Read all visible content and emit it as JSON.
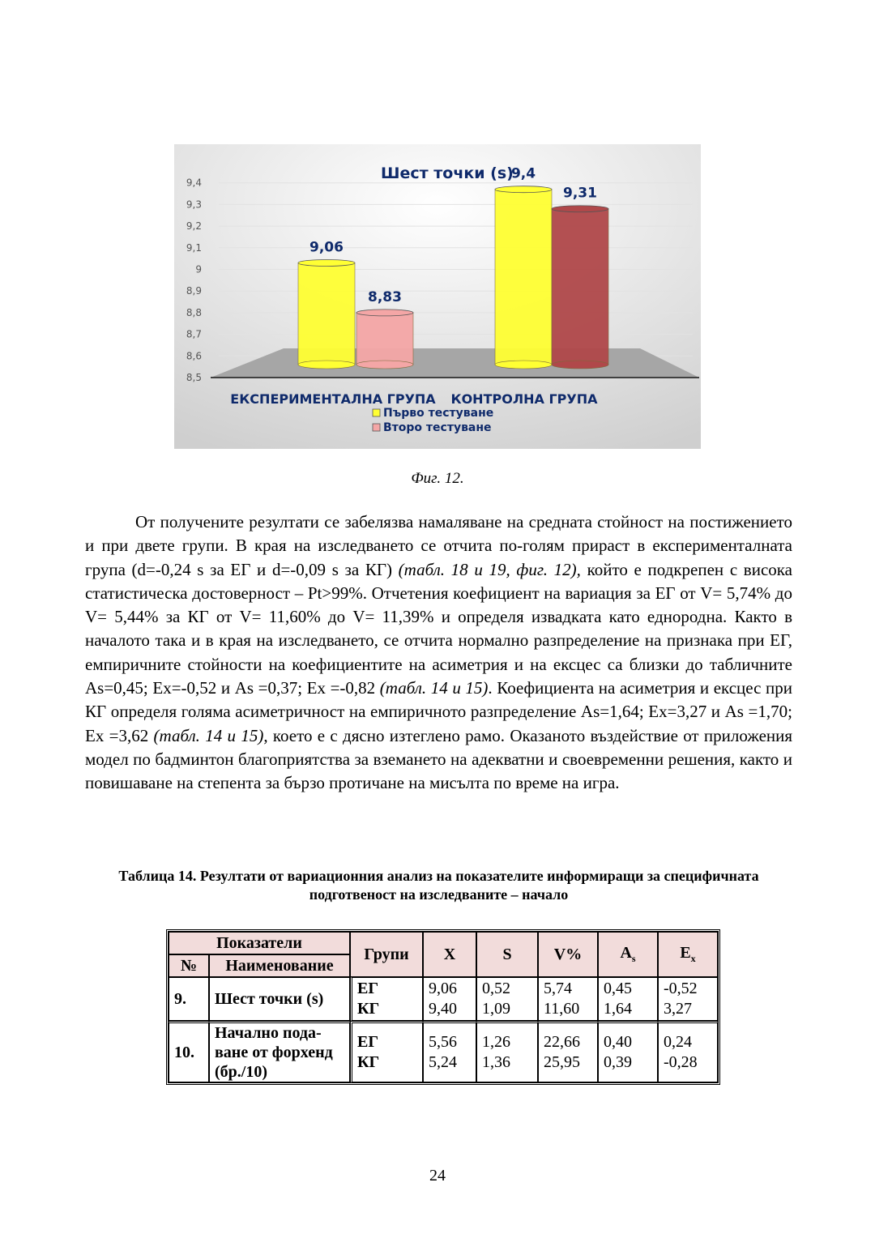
{
  "chart_data": {
    "type": "bar",
    "title": "Шест точки (s)",
    "categories": [
      "ЕКСПЕРИМЕНТАЛНА ГРУПА",
      "КОНТРОЛНА ГРУПА"
    ],
    "series": [
      {
        "name": "Първо тестуване",
        "values": [
          9.06,
          9.4
        ],
        "labels": [
          "9,06",
          "9,4"
        ],
        "color": "#ffff33"
      },
      {
        "name": "Второ тестуване",
        "values": [
          8.83,
          9.31
        ],
        "labels": [
          "8,83",
          "9,31"
        ],
        "colors": [
          "#f4a6a6",
          "#b0484a"
        ]
      }
    ],
    "yticks": [
      "8,5",
      "8,6",
      "8,7",
      "8,8",
      "8,9",
      "9",
      "9,1",
      "9,2",
      "9,3",
      "9,4"
    ],
    "ylim": [
      8.5,
      9.4
    ],
    "legend": "bottom",
    "style": "3d-cylinder",
    "label_color": "#0f2a6b"
  },
  "caption": "Фиг. 12.",
  "paragraph": [
    {
      "t": "От получените резултати се забелязва намаляване на средната стойност на постижението и при двете групи. В края на изследването се отчита по-голям прираст в експерименталната група (d=-0,24 s за ЕГ и d=-0,09 s за КГ) "
    },
    {
      "t": "(табл. 18 и 19, фиг. 12),",
      "i": true
    },
    {
      "t": " който е подкрепен с висока статистическа достоверност – Pt>99%. Отчетения коефициент на вариация за ЕГ от V= 5,74% до V= 5,44% за КГ от V= 11,60% до V= 11,39% и определя извадката като еднородна. Както в началото така и в края на изследването, се отчита нормално разпределение на признака при ЕГ, емпиричните стойности на коефициентите на асиметрия и на ексцес са близки до табличните As=0,45; Ex=-0,52 и As =0,37; Ex =-0,82 "
    },
    {
      "t": "(табл. 14 и 15)",
      "i": true
    },
    {
      "t": ". Коефициента на асиметрия и ексцес при КГ определя голяма асиметричност на емпиричното разпределение As=1,64; Ex=3,27 и As =1,70; Ex =3,62 "
    },
    {
      "t": "(табл. 14 и 15)",
      "i": true
    },
    {
      "t": ", което е с дясно изтеглено рамо. Оказаното въздействие от приложения модел по бадминтон благоприятства за вземането на адекватни и своевременни решения, както и повишаване на степента за бързо протичане на мисълта по време на игра."
    }
  ],
  "table_caption": "Таблица 14. Резултати от вариационния анализ на показателите информиращи за специфичната подготвеност на изследваните – начало",
  "table": {
    "header": {
      "indicators": "Показатели",
      "no": "№",
      "name": "Наименование",
      "groups": "Групи",
      "x": "X",
      "s": "S",
      "v": "V%",
      "as": "A",
      "as_sub": "s",
      "ex": "E",
      "ex_sub": "x"
    },
    "rows": [
      {
        "no": "9.",
        "name": "Шест точки (s)",
        "groups": "ЕГ\nКГ",
        "x": "9,06\n9,40",
        "s": "0,52\n1,09",
        "v": "5,74\n11,60",
        "as": "0,45\n1,64",
        "ex": "-0,52\n3,27"
      },
      {
        "no": "10.",
        "name": "Начално пода-\nване от форхенд\n(бр./10)",
        "groups": "ЕГ\nКГ",
        "x": "5,56\n5,24",
        "s": "1,26\n1,36",
        "v": "22,66\n25,95",
        "as": "0,40\n0,39",
        "ex": "0,24\n-0,28"
      }
    ]
  },
  "page_number": "24"
}
